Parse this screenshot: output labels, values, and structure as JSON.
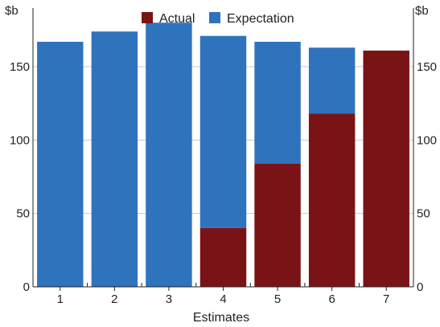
{
  "chart_data": {
    "type": "bar",
    "stacked": true,
    "categories": [
      "1",
      "2",
      "3",
      "4",
      "5",
      "6",
      "7"
    ],
    "series": [
      {
        "name": "Actual",
        "values": [
          0,
          0,
          0,
          40,
          84,
          118,
          161
        ]
      },
      {
        "name": "Expectation",
        "values": [
          167,
          174,
          180,
          131,
          83,
          45,
          0
        ]
      }
    ],
    "totals": [
      167,
      174,
      180,
      171,
      167,
      163,
      161
    ],
    "title": "",
    "xlabel": "Estimates",
    "ylabel_left": "$b",
    "ylabel_right": "$b",
    "ylim": [
      0,
      190
    ],
    "yticks": [
      0,
      50,
      100,
      150
    ],
    "grid": true,
    "legend_position": "top-center"
  },
  "colors": {
    "Actual": "#7a1315",
    "Expectation": "#2f73bd",
    "grid": "#c8c8c8",
    "axis": "#222222"
  }
}
